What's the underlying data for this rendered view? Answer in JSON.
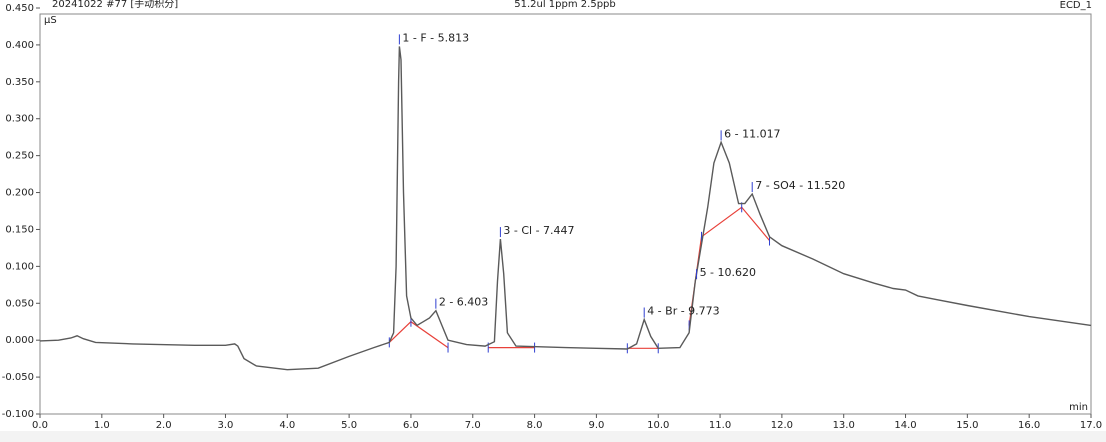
{
  "chart_data": {
    "type": "line",
    "file_label": "20241022 #77 [手动积分]",
    "title": "51.2ul 1ppm 2.5ppb",
    "channel": "ECD_1",
    "ylabel": "µS",
    "xlabel": "min",
    "color": "#5a5a5a",
    "baseline_color": "#e8413a",
    "marker_color": "#2f3fd0",
    "x": [
      0.0,
      0.3,
      0.5,
      0.6,
      0.7,
      0.9,
      1.5,
      2.5,
      3.0,
      3.15,
      3.2,
      3.3,
      3.5,
      4.0,
      4.5,
      5.0,
      5.4,
      5.65,
      5.72,
      5.76,
      5.8,
      5.813,
      5.84,
      5.88,
      5.93,
      6.0,
      6.1,
      6.2,
      6.3,
      6.403,
      6.5,
      6.6,
      6.9,
      7.2,
      7.35,
      7.4,
      7.447,
      7.5,
      7.56,
      7.7,
      8.5,
      9.0,
      9.5,
      9.65,
      9.773,
      9.88,
      10.0,
      10.35,
      10.5,
      10.6,
      10.7,
      10.8,
      10.9,
      11.017,
      11.15,
      11.3,
      11.4,
      11.52,
      11.65,
      11.8,
      12.0,
      12.5,
      13.0,
      13.5,
      13.8,
      14.0,
      14.2,
      14.5,
      15.0,
      16.0,
      17.0
    ],
    "values": [
      -0.001,
      0.0,
      0.003,
      0.006,
      0.002,
      -0.003,
      -0.005,
      -0.007,
      -0.007,
      -0.005,
      -0.008,
      -0.025,
      -0.035,
      -0.04,
      -0.038,
      -0.022,
      -0.01,
      -0.003,
      0.01,
      0.1,
      0.35,
      0.398,
      0.38,
      0.2,
      0.06,
      0.03,
      0.02,
      0.025,
      0.03,
      0.04,
      0.02,
      0.0,
      -0.006,
      -0.008,
      -0.002,
      0.08,
      0.137,
      0.09,
      0.01,
      -0.008,
      -0.01,
      -0.011,
      -0.012,
      -0.005,
      0.028,
      0.005,
      -0.011,
      -0.01,
      0.01,
      0.08,
      0.13,
      0.18,
      0.24,
      0.268,
      0.24,
      0.185,
      0.185,
      0.198,
      0.17,
      0.14,
      0.128,
      0.11,
      0.09,
      0.077,
      0.07,
      0.068,
      0.06,
      0.055,
      0.047,
      0.032,
      0.02
    ],
    "baselines": [
      {
        "x": [
          5.65,
          6.0,
          6.6
        ],
        "y": [
          -0.003,
          0.025,
          -0.01
        ]
      },
      {
        "x": [
          7.25,
          8.0
        ],
        "y": [
          -0.01,
          -0.01
        ]
      },
      {
        "x": [
          9.5,
          10.0
        ],
        "y": [
          -0.011,
          -0.011
        ]
      },
      {
        "x": [
          10.5,
          10.7,
          11.35,
          11.8
        ],
        "y": [
          0.02,
          0.14,
          0.18,
          0.135
        ]
      }
    ],
    "peaks": [
      {
        "label": "1 - F - 5.813",
        "time": 5.813,
        "height": 0.398
      },
      {
        "label": "2 - 6.403",
        "time": 6.403,
        "height": 0.04
      },
      {
        "label": "3 - Cl - 7.447",
        "time": 7.447,
        "height": 0.137
      },
      {
        "label": "4 - Br - 9.773",
        "time": 9.773,
        "height": 0.028
      },
      {
        "label": "5 - 10.620",
        "time": 10.62,
        "height": 0.08
      },
      {
        "label": "6 - 11.017",
        "time": 11.017,
        "height": 0.268
      },
      {
        "label": "7 - SO4 - 11.520",
        "time": 11.52,
        "height": 0.198
      }
    ],
    "xlim": [
      0,
      17
    ],
    "ylim": [
      -0.1,
      0.45
    ],
    "xticks": [
      {
        "value": 0,
        "label": "0.0"
      },
      {
        "value": 1,
        "label": "1.0"
      },
      {
        "value": 2,
        "label": "2.0"
      },
      {
        "value": 3,
        "label": "3.0"
      },
      {
        "value": 4,
        "label": "4.0"
      },
      {
        "value": 5,
        "label": "5.0"
      },
      {
        "value": 6,
        "label": "6.0"
      },
      {
        "value": 7,
        "label": "7.0"
      },
      {
        "value": 8,
        "label": "8.0"
      },
      {
        "value": 9,
        "label": "9.0"
      },
      {
        "value": 10,
        "label": "10.0"
      },
      {
        "value": 11,
        "label": "11.0"
      },
      {
        "value": 12,
        "label": "12.0"
      },
      {
        "value": 13,
        "label": "13.0"
      },
      {
        "value": 14,
        "label": "14.0"
      },
      {
        "value": 15,
        "label": "15.0"
      },
      {
        "value": 16,
        "label": "16.0"
      },
      {
        "value": 17,
        "label": "17.0"
      }
    ],
    "yticks": [
      {
        "value": -0.1,
        "label": "-0.100"
      },
      {
        "value": -0.05,
        "label": "-0.050"
      },
      {
        "value": 0,
        "label": "0.000"
      },
      {
        "value": 0.05,
        "label": "0.050"
      },
      {
        "value": 0.1,
        "label": "0.100"
      },
      {
        "value": 0.15,
        "label": "0.150"
      },
      {
        "value": 0.2,
        "label": "0.200"
      },
      {
        "value": 0.25,
        "label": "0.250"
      },
      {
        "value": 0.3,
        "label": "0.300"
      },
      {
        "value": 0.35,
        "label": "0.350"
      },
      {
        "value": 0.4,
        "label": "0.400"
      },
      {
        "value": 0.45,
        "label": "0.450"
      }
    ]
  }
}
